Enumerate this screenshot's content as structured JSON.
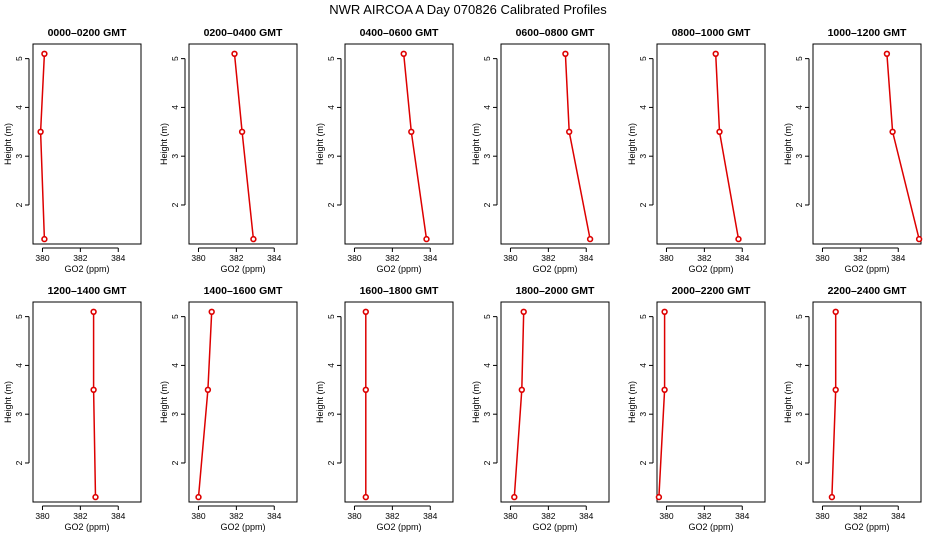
{
  "figure": {
    "title": "NWR AIRCOA A  Day 070826  Calibrated Profiles",
    "colors": {
      "series": "#dd0000",
      "axes": "#000000",
      "background": "#ffffff"
    }
  },
  "chart_data": [
    {
      "type": "line",
      "title": "0000–0200 GMT",
      "xlabel": "GO2 (ppm)",
      "ylabel": "Height (m)",
      "xlim": [
        379.5,
        385.2
      ],
      "ylim": [
        1.2,
        5.3
      ],
      "xticks": [
        "380",
        "382",
        "384"
      ],
      "yticks": [
        "2",
        "3",
        "4",
        "5"
      ],
      "grid": false,
      "series": [
        {
          "x": [
            380.1,
            379.9,
            380.1
          ],
          "y": [
            5.1,
            3.5,
            1.3
          ]
        }
      ]
    },
    {
      "type": "line",
      "title": "0200–0400 GMT",
      "xlabel": "GO2 (ppm)",
      "ylabel": "Height (m)",
      "xlim": [
        379.5,
        385.2
      ],
      "ylim": [
        1.2,
        5.3
      ],
      "xticks": [
        "380",
        "382",
        "384"
      ],
      "yticks": [
        "2",
        "3",
        "4",
        "5"
      ],
      "grid": false,
      "series": [
        {
          "x": [
            381.9,
            382.3,
            382.9
          ],
          "y": [
            5.1,
            3.5,
            1.3
          ]
        }
      ]
    },
    {
      "type": "line",
      "title": "0400–0600 GMT",
      "xlabel": "GO2 (ppm)",
      "ylabel": "Height (m)",
      "xlim": [
        379.5,
        385.2
      ],
      "ylim": [
        1.2,
        5.3
      ],
      "xticks": [
        "380",
        "382",
        "384"
      ],
      "yticks": [
        "2",
        "3",
        "4",
        "5"
      ],
      "grid": false,
      "series": [
        {
          "x": [
            382.6,
            383.0,
            383.8
          ],
          "y": [
            5.1,
            3.5,
            1.3
          ]
        }
      ]
    },
    {
      "type": "line",
      "title": "0600–0800 GMT",
      "xlabel": "GO2 (ppm)",
      "ylabel": "Height (m)",
      "xlim": [
        379.5,
        385.2
      ],
      "ylim": [
        1.2,
        5.3
      ],
      "xticks": [
        "380",
        "382",
        "384"
      ],
      "yticks": [
        "2",
        "3",
        "4",
        "5"
      ],
      "grid": false,
      "series": [
        {
          "x": [
            382.9,
            383.1,
            384.2
          ],
          "y": [
            5.1,
            3.5,
            1.3
          ]
        }
      ]
    },
    {
      "type": "line",
      "title": "0800–1000 GMT",
      "xlabel": "GO2 (ppm)",
      "ylabel": "Height (m)",
      "xlim": [
        379.5,
        385.2
      ],
      "ylim": [
        1.2,
        5.3
      ],
      "xticks": [
        "380",
        "382",
        "384"
      ],
      "yticks": [
        "2",
        "3",
        "4",
        "5"
      ],
      "grid": false,
      "series": [
        {
          "x": [
            382.6,
            382.8,
            383.8
          ],
          "y": [
            5.1,
            3.5,
            1.3
          ]
        }
      ]
    },
    {
      "type": "line",
      "title": "1000–1200 GMT",
      "xlabel": "GO2 (ppm)",
      "ylabel": "Height (m)",
      "xlim": [
        379.5,
        385.2
      ],
      "ylim": [
        1.2,
        5.3
      ],
      "xticks": [
        "380",
        "382",
        "384"
      ],
      "yticks": [
        "2",
        "3",
        "4",
        "5"
      ],
      "grid": false,
      "series": [
        {
          "x": [
            383.4,
            383.7,
            385.1
          ],
          "y": [
            5.1,
            3.5,
            1.3
          ]
        }
      ]
    },
    {
      "type": "line",
      "title": "1200–1400 GMT",
      "xlabel": "GO2 (ppm)",
      "ylabel": "Height (m)",
      "xlim": [
        379.5,
        385.2
      ],
      "ylim": [
        1.2,
        5.3
      ],
      "xticks": [
        "380",
        "382",
        "384"
      ],
      "yticks": [
        "2",
        "3",
        "4",
        "5"
      ],
      "grid": false,
      "series": [
        {
          "x": [
            382.7,
            382.7,
            382.8
          ],
          "y": [
            5.1,
            3.5,
            1.3
          ]
        }
      ]
    },
    {
      "type": "line",
      "title": "1400–1600 GMT",
      "xlabel": "GO2 (ppm)",
      "ylabel": "Height (m)",
      "xlim": [
        379.5,
        385.2
      ],
      "ylim": [
        1.2,
        5.3
      ],
      "xticks": [
        "380",
        "382",
        "384"
      ],
      "yticks": [
        "2",
        "3",
        "4",
        "5"
      ],
      "grid": false,
      "series": [
        {
          "x": [
            380.7,
            380.5,
            380.0
          ],
          "y": [
            5.1,
            3.5,
            1.3
          ]
        }
      ]
    },
    {
      "type": "line",
      "title": "1600–1800 GMT",
      "xlabel": "GO2 (ppm)",
      "ylabel": "Height (m)",
      "xlim": [
        379.5,
        385.2
      ],
      "ylim": [
        1.2,
        5.3
      ],
      "xticks": [
        "380",
        "382",
        "384"
      ],
      "yticks": [
        "2",
        "3",
        "4",
        "5"
      ],
      "grid": false,
      "series": [
        {
          "x": [
            380.6,
            380.6,
            380.6
          ],
          "y": [
            5.1,
            3.5,
            1.3
          ]
        }
      ]
    },
    {
      "type": "line",
      "title": "1800–2000 GMT",
      "xlabel": "GO2 (ppm)",
      "ylabel": "Height (m)",
      "xlim": [
        379.5,
        385.2
      ],
      "ylim": [
        1.2,
        5.3
      ],
      "xticks": [
        "380",
        "382",
        "384"
      ],
      "yticks": [
        "2",
        "3",
        "4",
        "5"
      ],
      "grid": false,
      "series": [
        {
          "x": [
            380.7,
            380.6,
            380.2
          ],
          "y": [
            5.1,
            3.5,
            1.3
          ]
        }
      ]
    },
    {
      "type": "line",
      "title": "2000–2200 GMT",
      "xlabel": "GO2 (ppm)",
      "ylabel": "Height (m)",
      "xlim": [
        379.5,
        385.2
      ],
      "ylim": [
        1.2,
        5.3
      ],
      "xticks": [
        "380",
        "382",
        "384"
      ],
      "yticks": [
        "2",
        "3",
        "4",
        "5"
      ],
      "grid": false,
      "series": [
        {
          "x": [
            379.9,
            379.9,
            379.6
          ],
          "y": [
            5.1,
            3.5,
            1.3
          ]
        }
      ]
    },
    {
      "type": "line",
      "title": "2200–2400 GMT",
      "xlabel": "GO2 (ppm)",
      "ylabel": "Height (m)",
      "xlim": [
        379.5,
        385.2
      ],
      "ylim": [
        1.2,
        5.3
      ],
      "xticks": [
        "380",
        "382",
        "384"
      ],
      "yticks": [
        "2",
        "3",
        "4",
        "5"
      ],
      "grid": false,
      "series": [
        {
          "x": [
            380.7,
            380.7,
            380.5
          ],
          "y": [
            5.1,
            3.5,
            1.3
          ]
        }
      ]
    }
  ]
}
